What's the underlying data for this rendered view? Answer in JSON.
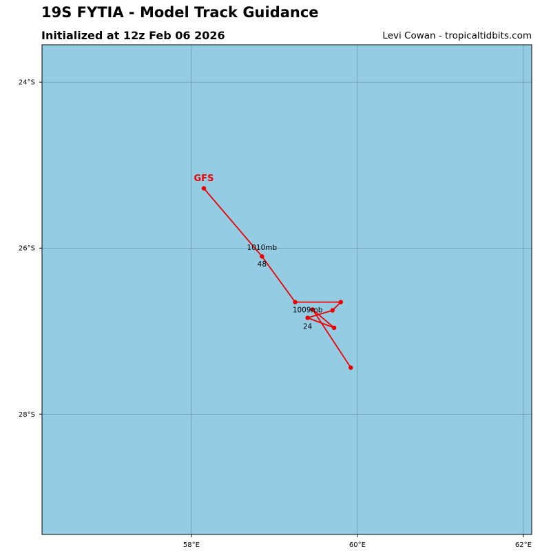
{
  "header": {
    "title": "19S FYTIA - Model Track Guidance",
    "subtitle": "Initialized at 12z Feb 06 2026",
    "credit": "Levi Cowan - tropicaltidbits.com"
  },
  "map": {
    "ocean_color": "#94cde3",
    "grid_color": "#5f8a96",
    "lon_range": [
      56.2,
      62.1
    ],
    "lat_range": [
      -23.55,
      -29.45
    ],
    "lat_ticks": [
      {
        "value": -24,
        "label": "24°S"
      },
      {
        "value": -26,
        "label": "26°S"
      },
      {
        "value": -28,
        "label": "28°S"
      }
    ],
    "lon_ticks": [
      {
        "value": 58,
        "label": "58°E"
      },
      {
        "value": 60,
        "label": "60°E"
      },
      {
        "value": 62,
        "label": "62°E"
      }
    ]
  },
  "tracks": [
    {
      "model": "GFS",
      "color": "#ee0000",
      "points": [
        {
          "lon": 59.92,
          "lat": -27.44
        },
        {
          "lon": 59.46,
          "lat": -26.74
        },
        {
          "lon": 59.72,
          "lat": -26.96
        },
        {
          "lon": 59.4,
          "lat": -26.84
        },
        {
          "lon": 59.7,
          "lat": -26.75
        },
        {
          "lon": 59.8,
          "lat": -26.65
        },
        {
          "lon": 59.25,
          "lat": -26.65
        },
        {
          "lon": 58.85,
          "lat": -26.1
        },
        {
          "lon": 58.15,
          "lat": -25.28
        }
      ],
      "labels": [
        {
          "text": "1010mb",
          "lon": 58.85,
          "lat": -25.99
        },
        {
          "text": "48",
          "lon": 58.85,
          "lat": -26.19
        },
        {
          "text": "1009mb",
          "lon": 59.4,
          "lat": -26.74
        },
        {
          "text": "24",
          "lon": 59.4,
          "lat": -26.94
        }
      ],
      "name_position": {
        "lon": 58.15,
        "lat": -25.15
      }
    }
  ]
}
